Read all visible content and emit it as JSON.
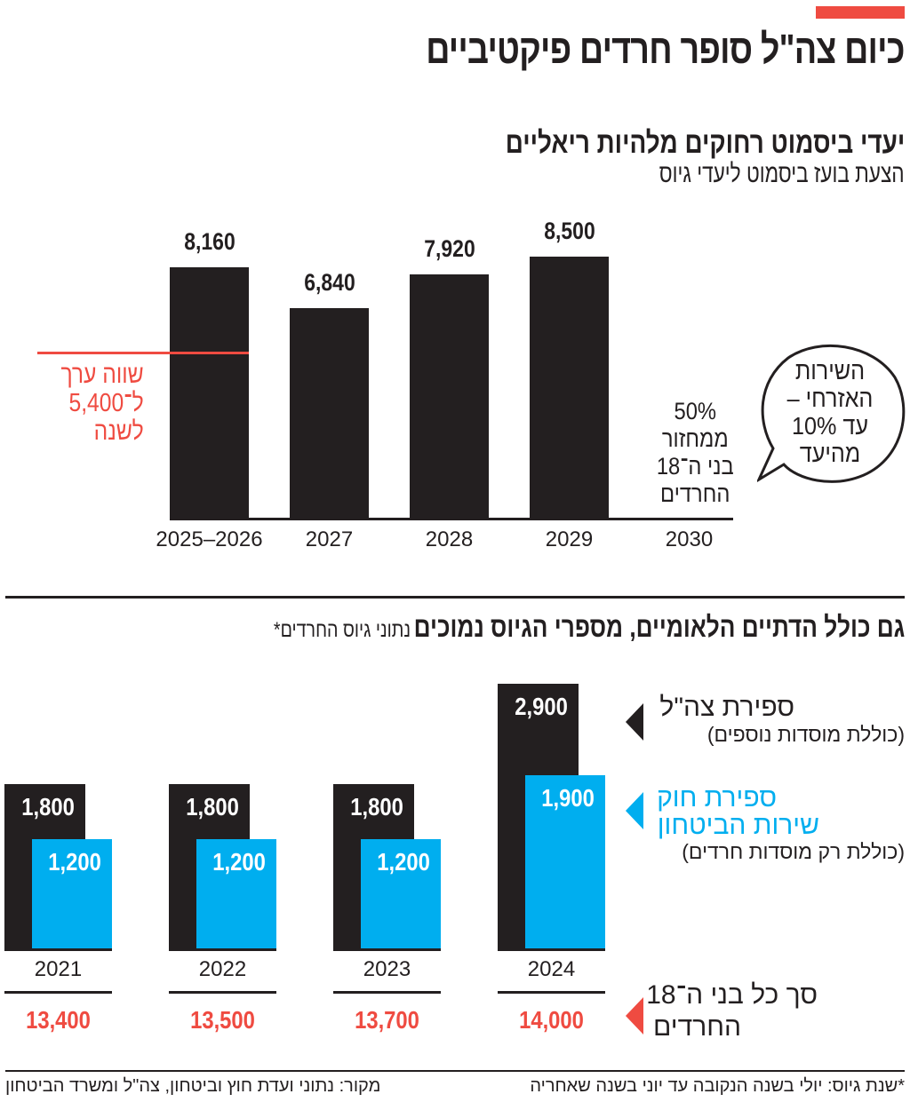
{
  "header": {
    "title": "כיום צה\"ל סופר חרדים פיקטיביים",
    "accent_color": "#ef4b41"
  },
  "chart_data": [
    {
      "type": "bar",
      "title": "יעדי ביסמוט רחוקים מלהיות ריאליים",
      "subtitle": "הצעת בועז ביסמוט ליעדי גיוס",
      "categories": [
        "2025–2026",
        "2027",
        "2028",
        "2029",
        "2030"
      ],
      "values": [
        8160,
        6840,
        7920,
        8500,
        null
      ],
      "value_labels": [
        "8,160",
        "6,840",
        "7,920",
        "8,500",
        ""
      ],
      "bar_color": "#231f20",
      "reference_line": {
        "value": 5400,
        "color": "#ef4b41",
        "label": "שווה ערך\nל־5,400\nלשנה"
      },
      "annotation_2030": "50%\nממחזור\nבני ה־18\nהחרדים",
      "bubble_text": "השירות\nהאזרחי –\nעד 10%\nמהיעד"
    },
    {
      "type": "bar",
      "title": "גם כולל הדתיים הלאומיים, מספרי הגיוס נמוכים",
      "title_note": "נתוני גיוס החרדים*",
      "categories": [
        "2021",
        "2022",
        "2023",
        "2024"
      ],
      "series": [
        {
          "name": "ספירת צה\"ל",
          "note": "(כוללת מוסדות נוספים)",
          "color": "#231f20",
          "values": [
            1800,
            1800,
            1800,
            2900
          ],
          "labels": [
            "1,800",
            "1,800",
            "1,800",
            "2,900"
          ]
        },
        {
          "name": "ספירת חוק שירות הביטחון",
          "name_line1": "ספירת חוק",
          "name_line2": "שירות הביטחון",
          "note": "(כוללת רק מוסדות חרדים)",
          "color": "#00aeef",
          "values": [
            1200,
            1200,
            1200,
            1900
          ],
          "labels": [
            "1,200",
            "1,200",
            "1,200",
            "1,900"
          ]
        }
      ],
      "totals": {
        "name_line1": "סך כל בני ה־18",
        "name_line2": "החרדים",
        "color": "#ef4b41",
        "values": [
          13400,
          13500,
          13700,
          14000
        ],
        "labels": [
          "13,400",
          "13,500",
          "13,700",
          "14,000"
        ]
      }
    }
  ],
  "footer": {
    "footnote": "*שנת גיוס: יולי בשנה הנקובה עד יוני בשנה שאחריה",
    "source": "מקור: נתוני ועדת חוץ וביטחון, צה\"ל ומשרד הביטחון"
  }
}
